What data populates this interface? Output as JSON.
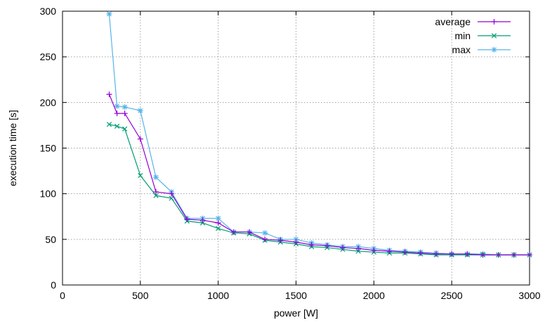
{
  "chart_data": {
    "type": "line",
    "title": "",
    "xlabel": "power [W]",
    "ylabel": "execution time [s]",
    "xlim": [
      0,
      3000
    ],
    "ylim": [
      0,
      300
    ],
    "xticks": [
      0,
      500,
      1000,
      1500,
      2000,
      2500,
      3000
    ],
    "yticks": [
      0,
      50,
      100,
      150,
      200,
      250,
      300
    ],
    "grid": true,
    "legend_position": "top-right",
    "series": [
      {
        "name": "average",
        "color": "#9400d3",
        "marker": "plus",
        "x": [
          300,
          350,
          400,
          500,
          600,
          700,
          800,
          900,
          1000,
          1100,
          1200,
          1300,
          1400,
          1500,
          1600,
          1700,
          1800,
          1900,
          2000,
          2100,
          2200,
          2300,
          2400,
          2500,
          2600,
          2700,
          2800,
          2900,
          3000
        ],
        "y": [
          209,
          188,
          188,
          160,
          102,
          100,
          72,
          71,
          68,
          58,
          58,
          50,
          49,
          47,
          44,
          43,
          41,
          40,
          38,
          37,
          36,
          35,
          34,
          34,
          34,
          33,
          33,
          33,
          33
        ]
      },
      {
        "name": "min",
        "color": "#009e73",
        "marker": "cross",
        "x": [
          300,
          350,
          400,
          500,
          600,
          700,
          800,
          900,
          1000,
          1100,
          1200,
          1300,
          1400,
          1500,
          1600,
          1700,
          1800,
          1900,
          2000,
          2100,
          2200,
          2300,
          2400,
          2500,
          2600,
          2700,
          2800,
          2900,
          3000
        ],
        "y": [
          176,
          174,
          171,
          120,
          98,
          95,
          70,
          68,
          62,
          57,
          56,
          49,
          47,
          45,
          42,
          41,
          39,
          37,
          36,
          35,
          35,
          34,
          33,
          33,
          33,
          33,
          33,
          33,
          33
        ]
      },
      {
        "name": "max",
        "color": "#56b4e9",
        "marker": "star",
        "x": [
          300,
          350,
          400,
          500,
          600,
          700,
          800,
          900,
          1000,
          1100,
          1200,
          1300,
          1400,
          1500,
          1600,
          1700,
          1800,
          1900,
          2000,
          2100,
          2200,
          2300,
          2400,
          2500,
          2600,
          2700,
          2800,
          2900,
          3000
        ],
        "y": [
          297,
          196,
          195,
          191,
          118,
          102,
          73,
          73,
          73,
          58,
          58,
          57,
          50,
          50,
          46,
          44,
          42,
          42,
          40,
          38,
          37,
          36,
          35,
          34,
          34,
          34,
          33,
          33,
          33
        ]
      }
    ]
  }
}
